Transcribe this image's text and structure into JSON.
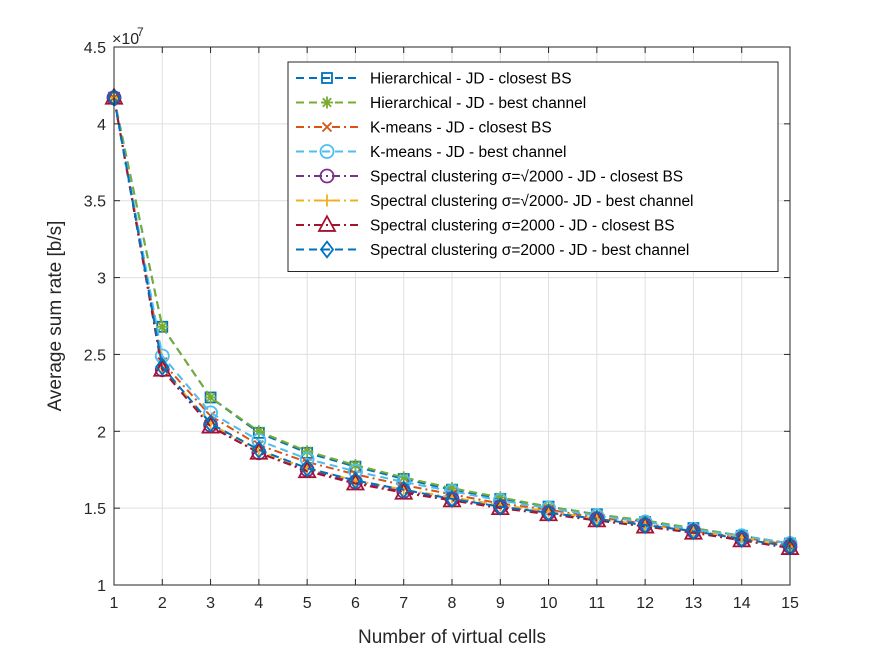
{
  "chart_data": {
    "type": "line",
    "title": "",
    "xlabel": "Number of virtual cells",
    "ylabel": "Average sum rate [b/s]",
    "y_exponent_label": "×10",
    "y_exponent_power": "7",
    "xlim": [
      1,
      15
    ],
    "ylim": [
      1,
      4.5
    ],
    "grid": true,
    "legend_position": "top-right",
    "x": [
      1,
      2,
      3,
      4,
      5,
      6,
      7,
      8,
      9,
      10,
      11,
      12,
      13,
      14,
      15
    ],
    "x_ticks": [
      "1",
      "2",
      "3",
      "4",
      "5",
      "6",
      "7",
      "8",
      "9",
      "10",
      "11",
      "12",
      "13",
      "14",
      "15"
    ],
    "y_ticks": [
      "1",
      "1.5",
      "2",
      "2.5",
      "3",
      "3.5",
      "4",
      "4.5"
    ],
    "series": [
      {
        "name": "Hierarchical - JD - closest BS",
        "color": "#0072BD",
        "dash": "dashed",
        "marker": "square",
        "values": [
          4.17,
          2.68,
          2.22,
          1.99,
          1.86,
          1.77,
          1.69,
          1.62,
          1.56,
          1.51,
          1.46,
          1.41,
          1.37,
          1.32,
          1.27
        ]
      },
      {
        "name": "Hierarchical - JD - best channel",
        "color": "#77AC30",
        "dash": "dashed",
        "marker": "asterisk",
        "values": [
          4.17,
          2.68,
          2.22,
          2.0,
          1.87,
          1.78,
          1.7,
          1.63,
          1.57,
          1.51,
          1.46,
          1.42,
          1.37,
          1.32,
          1.27
        ]
      },
      {
        "name": "K-means - JD - closest BS",
        "color": "#D95319",
        "dash": "dashdot",
        "marker": "x",
        "values": [
          4.17,
          2.45,
          2.1,
          1.91,
          1.8,
          1.72,
          1.65,
          1.59,
          1.53,
          1.49,
          1.44,
          1.4,
          1.35,
          1.31,
          1.26
        ]
      },
      {
        "name": "K-means - JD - best channel",
        "color": "#4DBEEE",
        "dash": "dashed",
        "marker": "circle",
        "values": [
          4.17,
          2.49,
          2.12,
          1.94,
          1.82,
          1.74,
          1.67,
          1.61,
          1.55,
          1.5,
          1.45,
          1.41,
          1.36,
          1.32,
          1.27
        ]
      },
      {
        "name": "Spectral clustering σ=√2000 - JD - closest BS",
        "color": "#7E2F8E",
        "dash": "dashdot",
        "marker": "circle",
        "values": [
          4.17,
          2.4,
          2.04,
          1.86,
          1.75,
          1.67,
          1.61,
          1.56,
          1.51,
          1.47,
          1.43,
          1.39,
          1.35,
          1.3,
          1.25
        ]
      },
      {
        "name": "Spectral clustering σ=√2000- JD - best channel",
        "color": "#EDB120",
        "dash": "dashdot",
        "marker": "plus",
        "values": [
          4.17,
          2.41,
          2.05,
          1.87,
          1.76,
          1.68,
          1.62,
          1.57,
          1.52,
          1.48,
          1.43,
          1.39,
          1.35,
          1.31,
          1.25
        ]
      },
      {
        "name": "Spectral clustering σ=2000 - JD - closest BS",
        "color": "#A2142F",
        "dash": "dashdot",
        "marker": "triangle",
        "values": [
          4.17,
          2.4,
          2.03,
          1.86,
          1.74,
          1.66,
          1.6,
          1.55,
          1.5,
          1.46,
          1.42,
          1.38,
          1.34,
          1.29,
          1.24
        ]
      },
      {
        "name": "Spectral clustering σ=2000 - JD - best channel",
        "color": "#0072BD",
        "dash": "dashed",
        "marker": "diamond",
        "values": [
          4.17,
          2.42,
          2.05,
          1.88,
          1.76,
          1.68,
          1.62,
          1.56,
          1.51,
          1.47,
          1.43,
          1.39,
          1.35,
          1.3,
          1.25
        ]
      }
    ]
  }
}
